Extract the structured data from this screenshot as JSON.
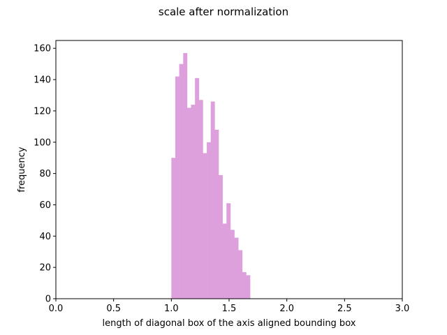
{
  "chart_data": {
    "type": "bar",
    "title": "scale after normalization",
    "xlabel": "length of diagonal box of the axis aligned bounding box",
    "ylabel": "frequency",
    "xlim": [
      0,
      3.0
    ],
    "ylim": [
      0,
      165
    ],
    "xticks": [
      0.0,
      0.5,
      1.0,
      1.5,
      2.0,
      2.5,
      3.0
    ],
    "xtick_labels": [
      "0.0",
      "0.5",
      "1.0",
      "1.5",
      "2.0",
      "2.5",
      "3.0"
    ],
    "yticks": [
      0,
      20,
      40,
      60,
      80,
      100,
      120,
      140,
      160
    ],
    "ytick_labels": [
      "0",
      "20",
      "40",
      "60",
      "80",
      "100",
      "120",
      "140",
      "160"
    ],
    "grid": false,
    "color": "#dda0dd",
    "bin_start": 1.0,
    "bin_width": 0.0341,
    "values": [
      90,
      142,
      150,
      157,
      122,
      124,
      141,
      127,
      93,
      100,
      126,
      108,
      79,
      48,
      61,
      44,
      39,
      31,
      17,
      15
    ]
  }
}
